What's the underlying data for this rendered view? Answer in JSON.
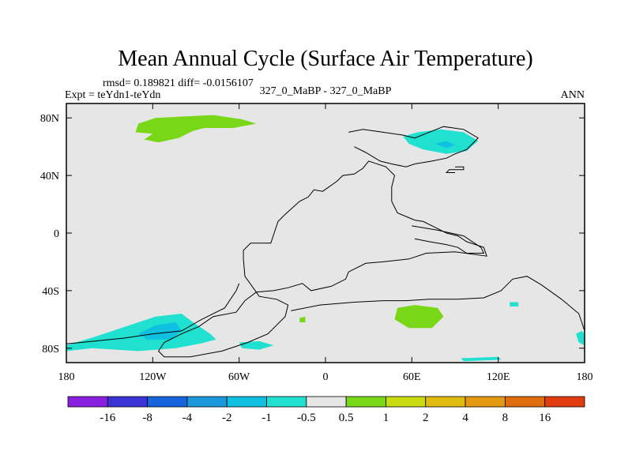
{
  "chart_data": {
    "type": "contour-map",
    "title": "Mean Annual Cycle (Surface Air Temperature)",
    "stats_label": "rmsd= 0.189821 diff= -0.0156107",
    "left_label": "Expt = teYdn1-teYdn",
    "center_label": "327_0_MaBP - 327_0_MaBP",
    "right_label": "ANN",
    "xlim": [
      -180,
      180
    ],
    "ylim": [
      -90,
      90
    ],
    "x_ticks": [
      {
        "value": -180,
        "label": "180"
      },
      {
        "value": -120,
        "label": "120W"
      },
      {
        "value": -60,
        "label": "60W"
      },
      {
        "value": 0,
        "label": "0"
      },
      {
        "value": 60,
        "label": "60E"
      },
      {
        "value": 120,
        "label": "120E"
      },
      {
        "value": 180,
        "label": "180"
      }
    ],
    "y_ticks": [
      {
        "value": 80,
        "label": "80N"
      },
      {
        "value": 40,
        "label": "40N"
      },
      {
        "value": 0,
        "label": "0"
      },
      {
        "value": -40,
        "label": "40S"
      },
      {
        "value": -80,
        "label": "80S"
      }
    ],
    "colorbar": {
      "colors": [
        "#8a1fe0",
        "#3c33d6",
        "#1664dc",
        "#1a98dc",
        "#10c0e0",
        "#20e0d0",
        "#e6e6e6",
        "#78d818",
        "#c8dc10",
        "#e0bc10",
        "#e49a10",
        "#e06c10",
        "#e03c10"
      ],
      "labels": [
        "-16",
        "-8",
        "-4",
        "-2",
        "-1",
        "-0.5",
        "0.5",
        "1",
        "2",
        "4",
        "8",
        "16"
      ]
    },
    "anomaly_regions": [
      {
        "name": "greenland-warm",
        "category": "0.5 to 1",
        "color": "#78d818",
        "points": [
          [
            -130,
            76
          ],
          [
            -118,
            80
          ],
          [
            -98,
            81
          ],
          [
            -78,
            82
          ],
          [
            -58,
            79
          ],
          [
            -48,
            76
          ],
          [
            -64,
            73
          ],
          [
            -84,
            73
          ],
          [
            -92,
            71
          ],
          [
            -102,
            66
          ],
          [
            -116,
            63
          ],
          [
            -126,
            65
          ],
          [
            -120,
            69
          ],
          [
            -132,
            70
          ]
        ]
      },
      {
        "name": "siberia-cool",
        "category": "-0.5 to -1",
        "color": "#20e0d0",
        "points": [
          [
            54,
            67
          ],
          [
            64,
            70
          ],
          [
            80,
            72
          ],
          [
            96,
            70
          ],
          [
            106,
            64
          ],
          [
            98,
            57
          ],
          [
            84,
            55
          ],
          [
            68,
            58
          ],
          [
            58,
            62
          ]
        ]
      },
      {
        "name": "siberia-core",
        "category": "-1 to -2",
        "color": "#10c0e0",
        "points": [
          [
            76,
            62
          ],
          [
            84,
            64
          ],
          [
            90,
            61
          ],
          [
            84,
            59
          ]
        ]
      },
      {
        "name": "south-atlantic-cool",
        "category": "-0.5 to -1",
        "color": "#20e0d0",
        "points": [
          [
            -180,
            -78
          ],
          [
            -160,
            -72
          ],
          [
            -136,
            -64
          ],
          [
            -118,
            -58
          ],
          [
            -100,
            -56
          ],
          [
            -92,
            -62
          ],
          [
            -80,
            -70
          ],
          [
            -76,
            -74
          ],
          [
            -88,
            -77
          ],
          [
            -104,
            -80
          ],
          [
            -130,
            -82
          ],
          [
            -162,
            -80
          ],
          [
            -180,
            -82
          ]
        ]
      },
      {
        "name": "south-atlantic-core",
        "category": "-1 to -2",
        "color": "#10c0e0",
        "points": [
          [
            -130,
            -70
          ],
          [
            -118,
            -64
          ],
          [
            -104,
            -62
          ],
          [
            -100,
            -68
          ],
          [
            -108,
            -74
          ],
          [
            -124,
            -74
          ]
        ]
      },
      {
        "name": "south-warm",
        "category": "0.5 to 1",
        "color": "#78d818",
        "points": [
          [
            50,
            -52
          ],
          [
            62,
            -50
          ],
          [
            78,
            -52
          ],
          [
            82,
            -58
          ],
          [
            74,
            -66
          ],
          [
            58,
            -66
          ],
          [
            48,
            -60
          ]
        ]
      },
      {
        "name": "south-small-cool-1",
        "category": "-0.5 to -1",
        "color": "#20e0d0",
        "points": [
          [
            -60,
            -76
          ],
          [
            -46,
            -75
          ],
          [
            -36,
            -78
          ],
          [
            -46,
            -81
          ],
          [
            -58,
            -80
          ]
        ]
      },
      {
        "name": "south-small-warm",
        "category": "0.5 to 1",
        "color": "#78d818",
        "points": [
          [
            -18,
            -59
          ],
          [
            -14,
            -58
          ],
          [
            -14,
            -62
          ],
          [
            -18,
            -62
          ]
        ]
      },
      {
        "name": "east-cool-1",
        "category": "-0.5 to -1",
        "color": "#20e0d0",
        "points": [
          [
            174,
            -70
          ],
          [
            178,
            -68
          ],
          [
            180,
            -70
          ],
          [
            180,
            -78
          ],
          [
            176,
            -76
          ]
        ]
      },
      {
        "name": "east-cool-2",
        "category": "-0.5 to -1",
        "color": "#20e0d0",
        "points": [
          [
            128,
            -48
          ],
          [
            134,
            -48
          ],
          [
            134,
            -51
          ],
          [
            128,
            -51
          ]
        ]
      },
      {
        "name": "south-bottom-cool",
        "category": "-0.5 to -1",
        "color": "#20e0d0",
        "points": [
          [
            94,
            -87
          ],
          [
            120,
            -86
          ],
          [
            122,
            -88
          ],
          [
            96,
            -89
          ]
        ]
      }
    ],
    "coastlines": [
      {
        "name": "continent-outline",
        "points": [
          [
            -57,
            -18
          ],
          [
            -57,
            -12
          ],
          [
            -52,
            -7
          ],
          [
            -38,
            -7
          ],
          [
            -33,
            8
          ],
          [
            -28,
            13
          ],
          [
            -18,
            22
          ],
          [
            -12,
            25
          ],
          [
            -8,
            30
          ],
          [
            -2,
            29
          ],
          [
            8,
            36
          ],
          [
            12,
            40
          ],
          [
            20,
            41
          ],
          [
            26,
            45
          ],
          [
            30,
            50
          ],
          [
            42,
            46
          ],
          [
            48,
            40
          ],
          [
            46,
            32
          ],
          [
            46,
            22
          ],
          [
            50,
            14
          ],
          [
            62,
            9
          ],
          [
            68,
            8
          ],
          [
            76,
            4
          ],
          [
            84,
            0
          ],
          [
            92,
            -2
          ],
          [
            98,
            -6
          ],
          [
            110,
            -10
          ],
          [
            112,
            -16
          ],
          [
            90,
            -13
          ],
          [
            70,
            -14
          ],
          [
            58,
            -18
          ],
          [
            40,
            -20
          ],
          [
            28,
            -21
          ],
          [
            16,
            -27
          ],
          [
            14,
            -32
          ],
          [
            4,
            -37
          ],
          [
            -10,
            -40
          ],
          [
            -16,
            -35
          ],
          [
            -26,
            -38
          ],
          [
            -36,
            -40
          ],
          [
            -48,
            -41
          ],
          [
            -56,
            -47
          ],
          [
            -62,
            -55
          ],
          [
            -78,
            -58
          ],
          [
            -88,
            -65
          ],
          [
            -100,
            -70
          ],
          [
            -112,
            -76
          ],
          [
            -116,
            -82
          ],
          [
            -112,
            -86
          ],
          [
            -94,
            -86
          ],
          [
            -72,
            -82
          ],
          [
            -54,
            -76
          ],
          [
            -40,
            -70
          ],
          [
            -28,
            -58
          ],
          [
            -26,
            -50
          ],
          [
            -34,
            -46
          ],
          [
            -46,
            -44
          ],
          [
            -56,
            -30
          ],
          [
            -57,
            -18
          ]
        ]
      },
      {
        "name": "antarctic-coast",
        "points": [
          [
            -180,
            -77
          ],
          [
            -160,
            -75
          ],
          [
            -140,
            -73
          ],
          [
            -120,
            -70
          ],
          [
            -100,
            -68
          ],
          [
            -86,
            -60
          ],
          [
            -70,
            -52
          ],
          [
            -62,
            -40
          ],
          [
            -60,
            -35
          ]
        ]
      },
      {
        "name": "southern-coast",
        "points": [
          [
            -24,
            -54
          ],
          [
            -4,
            -50
          ],
          [
            20,
            -48
          ],
          [
            40,
            -47
          ],
          [
            56,
            -47
          ],
          [
            72,
            -46
          ],
          [
            92,
            -46
          ],
          [
            110,
            -45
          ],
          [
            122,
            -40
          ],
          [
            130,
            -32
          ],
          [
            140,
            -30
          ],
          [
            150,
            -36
          ],
          [
            164,
            -46
          ],
          [
            176,
            -56
          ],
          [
            180,
            -68
          ]
        ]
      },
      {
        "name": "arctic-coast",
        "points": [
          [
            16,
            70
          ],
          [
            26,
            72
          ],
          [
            40,
            70
          ],
          [
            54,
            68
          ],
          [
            62,
            66
          ],
          [
            82,
            74
          ],
          [
            96,
            72
          ],
          [
            106,
            66
          ],
          [
            98,
            58
          ],
          [
            90,
            55
          ],
          [
            84,
            52
          ],
          [
            74,
            50
          ],
          [
            62,
            48
          ],
          [
            56,
            46
          ],
          [
            46,
            48
          ],
          [
            38,
            50
          ],
          [
            28,
            56
          ],
          [
            20,
            60
          ]
        ]
      },
      {
        "name": "east-peninsula",
        "points": [
          [
            90,
            46
          ],
          [
            96,
            46
          ],
          [
            96,
            44
          ],
          [
            86,
            44
          ],
          [
            84,
            42
          ],
          [
            90,
            42
          ]
        ]
      },
      {
        "name": "east-arm",
        "points": [
          [
            60,
            5
          ],
          [
            78,
            2
          ],
          [
            96,
            -2
          ],
          [
            108,
            -10
          ],
          [
            110,
            -14
          ],
          [
            98,
            -14
          ],
          [
            92,
            -10
          ],
          [
            84,
            -8
          ],
          [
            72,
            -6
          ],
          [
            62,
            -4
          ]
        ]
      }
    ]
  }
}
